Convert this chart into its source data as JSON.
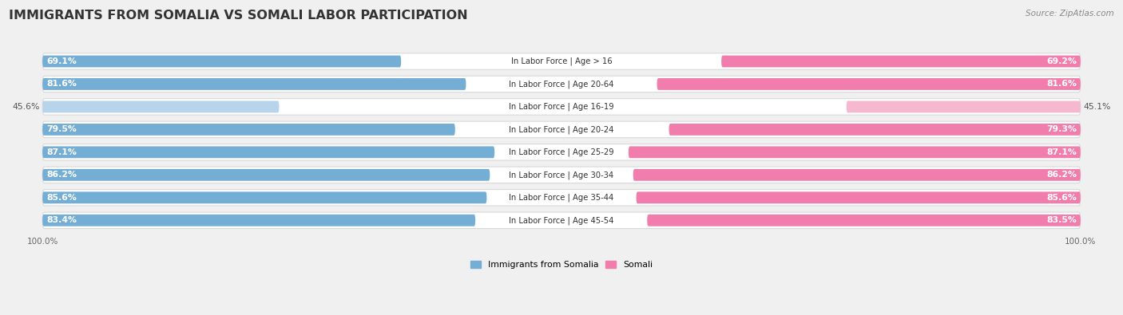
{
  "title": "IMMIGRANTS FROM SOMALIA VS SOMALI LABOR PARTICIPATION",
  "source": "Source: ZipAtlas.com",
  "categories": [
    "In Labor Force | Age > 16",
    "In Labor Force | Age 20-64",
    "In Labor Force | Age 16-19",
    "In Labor Force | Age 20-24",
    "In Labor Force | Age 25-29",
    "In Labor Force | Age 30-34",
    "In Labor Force | Age 35-44",
    "In Labor Force | Age 45-54"
  ],
  "somalia_values": [
    69.1,
    81.6,
    45.6,
    79.5,
    87.1,
    86.2,
    85.6,
    83.4
  ],
  "somali_values": [
    69.2,
    81.6,
    45.1,
    79.3,
    87.1,
    86.2,
    85.6,
    83.5
  ],
  "somalia_color": "#74aed4",
  "somali_color": "#f07dab",
  "somalia_light_color": "#b8d4ea",
  "somali_light_color": "#f5b8ce",
  "background_color": "#f0f0f0",
  "row_bg_color": "#ffffff",
  "row_border_color": "#d8d8d8",
  "max_value": 100.0,
  "legend_somalia": "Immigrants from Somalia",
  "legend_somali": "Somali",
  "title_fontsize": 11.5,
  "label_fontsize": 7.8,
  "tick_fontsize": 7.5,
  "source_fontsize": 7.5,
  "cat_fontsize": 7.2
}
